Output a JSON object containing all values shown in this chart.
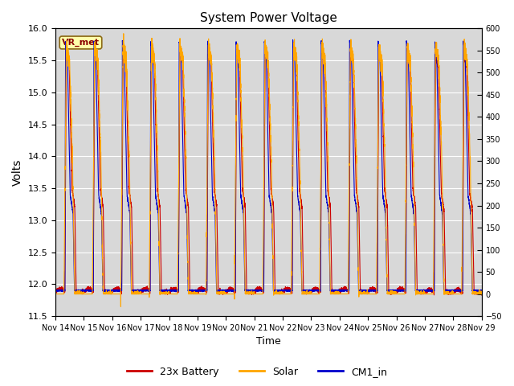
{
  "title": "System Power Voltage",
  "xlabel": "Time",
  "ylabel": "Volts",
  "ylim_left": [
    11.5,
    16.0
  ],
  "ylim_right": [
    -50,
    600
  ],
  "yticks_left": [
    11.5,
    12.0,
    12.5,
    13.0,
    13.5,
    14.0,
    14.5,
    15.0,
    15.5,
    16.0
  ],
  "yticks_right": [
    -50,
    0,
    50,
    100,
    150,
    200,
    250,
    300,
    350,
    400,
    450,
    500,
    550,
    600
  ],
  "xtick_labels": [
    "Nov 14",
    "Nov 15",
    "Nov 16",
    "Nov 17",
    "Nov 18",
    "Nov 19",
    "Nov 20",
    "Nov 21",
    "Nov 22",
    "Nov 23",
    "Nov 24",
    "Nov 25",
    "Nov 26",
    "Nov 27",
    "Nov 28",
    "Nov 29"
  ],
  "legend_labels": [
    "23x Battery",
    "Solar",
    "CM1_in"
  ],
  "legend_colors": [
    "#cc0000",
    "#ffa500",
    "#0000cc"
  ],
  "vr_met_label": "VR_met",
  "background_color": "#ffffff",
  "plot_bg_color": "#d8d8d8",
  "grid_color": "#ffffff",
  "num_days": 15,
  "seed": 42
}
